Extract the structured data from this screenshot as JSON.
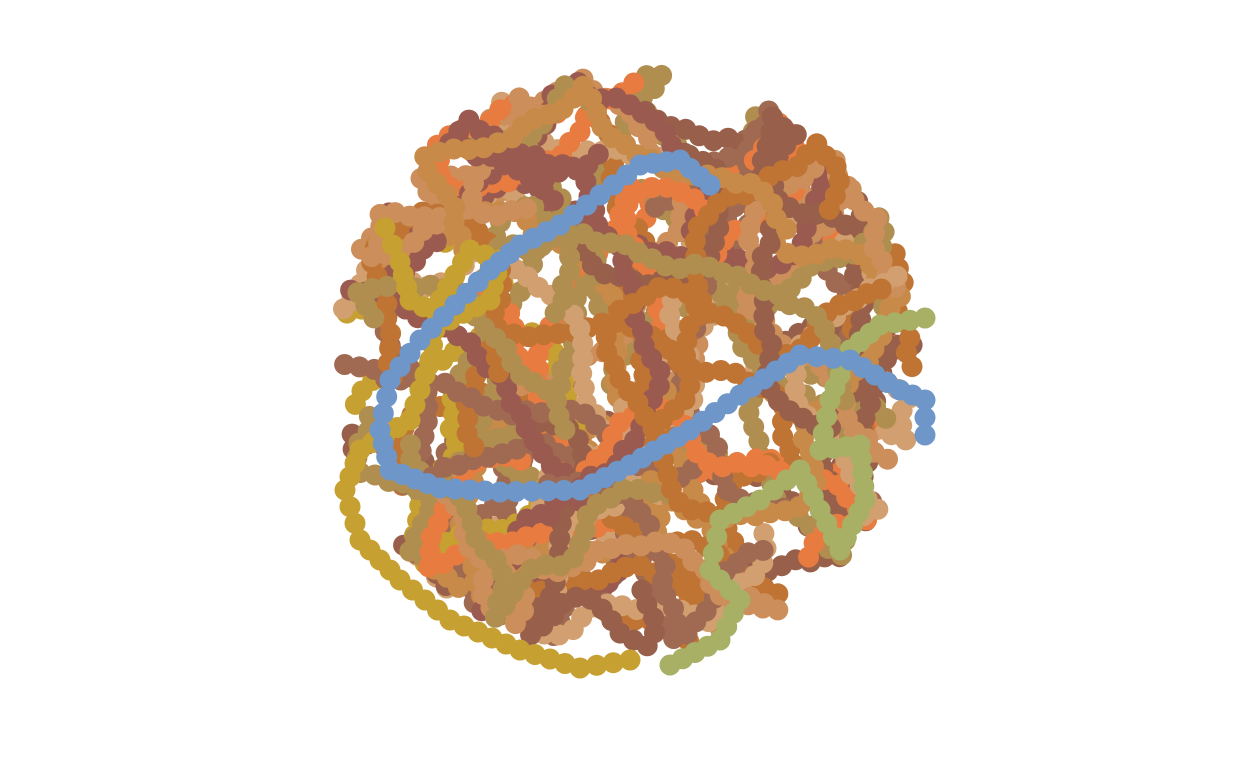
{
  "colors": {
    "background": "#ffffff",
    "palette": [
      "#bf7434",
      "#cc8e5a",
      "#a06a52",
      "#9a5a50",
      "#b08e50",
      "#c6a030",
      "#d2a070",
      "#6e96c8",
      "#e87c40",
      "#a8b066",
      "#98604a",
      "#c88a48"
    ]
  },
  "figure": {
    "kind": "space-filling polymer chains packed in a circle",
    "highlighted_chains": [
      {
        "name": "blue-chain",
        "color": "#6e96c8"
      },
      {
        "name": "olive-green-chain",
        "color": "#a8b066"
      },
      {
        "name": "gold-chain",
        "color": "#c6a030"
      }
    ]
  }
}
